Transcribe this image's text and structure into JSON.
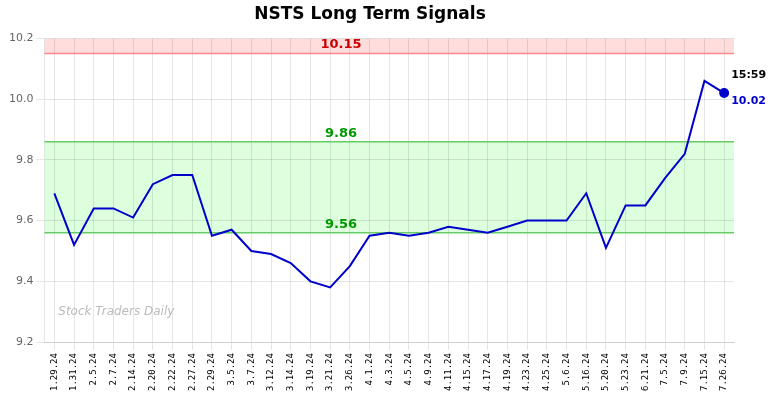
{
  "chart_data": {
    "type": "line",
    "title": "NSTS Long Term Signals",
    "categories": [
      "1.29.24",
      "1.31.24",
      "2.5.24",
      "2.7.24",
      "2.14.24",
      "2.20.24",
      "2.22.24",
      "2.27.24",
      "2.29.24",
      "3.5.24",
      "3.7.24",
      "3.12.24",
      "3.14.24",
      "3.19.24",
      "3.21.24",
      "3.26.24",
      "4.1.24",
      "4.3.24",
      "4.5.24",
      "4.9.24",
      "4.11.24",
      "4.15.24",
      "4.17.24",
      "4.19.24",
      "4.23.24",
      "4.25.24",
      "5.6.24",
      "5.16.24",
      "5.20.24",
      "5.23.24",
      "6.21.24",
      "7.5.24",
      "7.9.24",
      "7.15.24",
      "7.26.24"
    ],
    "values": [
      9.69,
      9.52,
      9.64,
      9.64,
      9.61,
      9.72,
      9.75,
      9.75,
      9.55,
      9.57,
      9.5,
      9.49,
      9.46,
      9.4,
      9.38,
      9.45,
      9.55,
      9.56,
      9.55,
      9.56,
      9.58,
      9.57,
      9.56,
      9.58,
      9.6,
      9.6,
      9.6,
      9.69,
      9.51,
      9.65,
      9.65,
      9.74,
      9.82,
      10.06,
      10.02
    ],
    "color": "#0000cc",
    "ylim": [
      9.2,
      10.2
    ],
    "yticks": [
      9.2,
      9.4,
      9.6,
      9.8,
      {
        "value": 10,
        "label": "10.0"
      },
      10.2
    ],
    "grid": true,
    "reference_lines": [
      {
        "value": 10.15,
        "label": "10.15",
        "color": "#ff8888",
        "label_color": "#cc0000"
      },
      {
        "value": 9.86,
        "label": "9.86",
        "color": "#66cc66",
        "label_color": "#009900"
      },
      {
        "value": 9.56,
        "label": "9.56",
        "color": "#66cc66",
        "label_color": "#009900"
      }
    ],
    "bands": [
      {
        "from": 10.15,
        "to": 10.2,
        "color": "#ffdddd"
      },
      {
        "from": 9.56,
        "to": 9.86,
        "color": "#ddffdd"
      }
    ],
    "annotations": [
      {
        "text": "15:59",
        "x": "7.26.24",
        "y": 10.02,
        "position": "above",
        "color": "#000000"
      },
      {
        "text": "10.02",
        "x": "7.26.24",
        "y": 10.02,
        "position": "below",
        "color": "#0000cc"
      }
    ],
    "watermark": "Stock Traders Daily"
  }
}
